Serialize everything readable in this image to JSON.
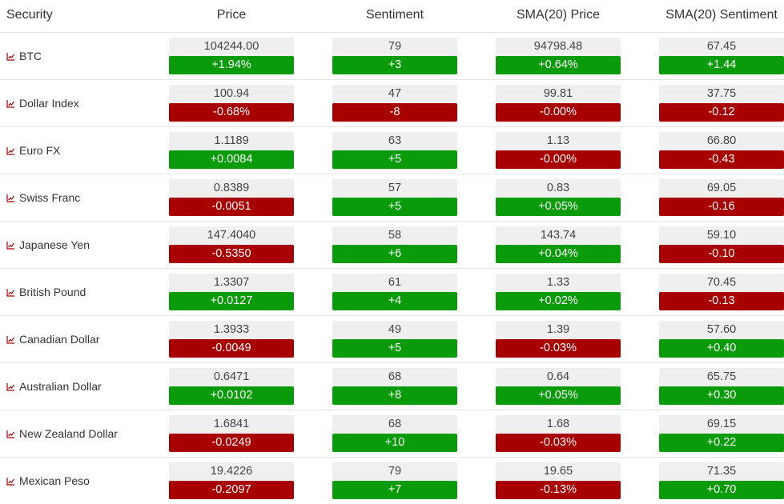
{
  "headers": {
    "security": "Security",
    "price": "Price",
    "sentiment": "Sentiment",
    "sma_price": "SMA(20) Price",
    "sma_sentiment": "SMA(20) Sentiment"
  },
  "colors": {
    "up": "#0a9b0a",
    "down": "#a80000",
    "value_bg": "#efefef",
    "icon": "#a80000"
  },
  "rows": [
    {
      "security": "BTC",
      "icon": "chart-icon",
      "price": "104244.00",
      "price_chg": "+1.94%",
      "sentiment": "79",
      "sentiment_chg": "+3",
      "sma_price": "94798.48",
      "sma_price_chg": "+0.64%",
      "sma_sentiment": "67.45",
      "sma_sentiment_chg": "+1.44"
    },
    {
      "security": "Dollar Index",
      "icon": "chart-icon",
      "price": "100.94",
      "price_chg": "-0.68%",
      "sentiment": "47",
      "sentiment_chg": "-8",
      "sma_price": "99.81",
      "sma_price_chg": "-0.00%",
      "sma_sentiment": "37.75",
      "sma_sentiment_chg": "-0.12"
    },
    {
      "security": "Euro FX",
      "icon": "chart-icon",
      "price": "1.1189",
      "price_chg": "+0.0084",
      "sentiment": "63",
      "sentiment_chg": "+5",
      "sma_price": "1.13",
      "sma_price_chg": "-0.00%",
      "sma_sentiment": "66.80",
      "sma_sentiment_chg": "-0.43"
    },
    {
      "security": "Swiss Franc",
      "icon": "chart-icon",
      "price": "0.8389",
      "price_chg": "-0.0051",
      "sentiment": "57",
      "sentiment_chg": "+5",
      "sma_price": "0.83",
      "sma_price_chg": "+0.05%",
      "sma_sentiment": "69.05",
      "sma_sentiment_chg": "-0.16"
    },
    {
      "security": "Japanese Yen",
      "icon": "chart-icon",
      "price": "147.4040",
      "price_chg": "-0.5350",
      "sentiment": "58",
      "sentiment_chg": "+6",
      "sma_price": "143.74",
      "sma_price_chg": "+0.04%",
      "sma_sentiment": "59.10",
      "sma_sentiment_chg": "-0.10"
    },
    {
      "security": "British Pound",
      "icon": "chart-icon",
      "price": "1.3307",
      "price_chg": "+0.0127",
      "sentiment": "61",
      "sentiment_chg": "+4",
      "sma_price": "1.33",
      "sma_price_chg": "+0.02%",
      "sma_sentiment": "70.45",
      "sma_sentiment_chg": "-0.13"
    },
    {
      "security": "Canadian Dollar",
      "icon": "chart-icon",
      "price": "1.3933",
      "price_chg": "-0.0049",
      "sentiment": "49",
      "sentiment_chg": "+5",
      "sma_price": "1.39",
      "sma_price_chg": "-0.03%",
      "sma_sentiment": "57.60",
      "sma_sentiment_chg": "+0.40"
    },
    {
      "security": "Australian Dollar",
      "icon": "chart-icon",
      "price": "0.6471",
      "price_chg": "+0.0102",
      "sentiment": "68",
      "sentiment_chg": "+8",
      "sma_price": "0.64",
      "sma_price_chg": "+0.05%",
      "sma_sentiment": "65.75",
      "sma_sentiment_chg": "+0.30"
    },
    {
      "security": "New Zealand Dollar",
      "icon": "chart-icon",
      "price": "1.6841",
      "price_chg": "-0.0249",
      "sentiment": "68",
      "sentiment_chg": "+10",
      "sma_price": "1.68",
      "sma_price_chg": "-0.03%",
      "sma_sentiment": "69.15",
      "sma_sentiment_chg": "+0.22"
    },
    {
      "security": "Mexican Peso",
      "icon": "chart-icon",
      "price": "19.4226",
      "price_chg": "-0.2097",
      "sentiment": "79",
      "sentiment_chg": "+7",
      "sma_price": "19.65",
      "sma_price_chg": "-0.13%",
      "sma_sentiment": "71.35",
      "sma_sentiment_chg": "+0.70"
    }
  ]
}
